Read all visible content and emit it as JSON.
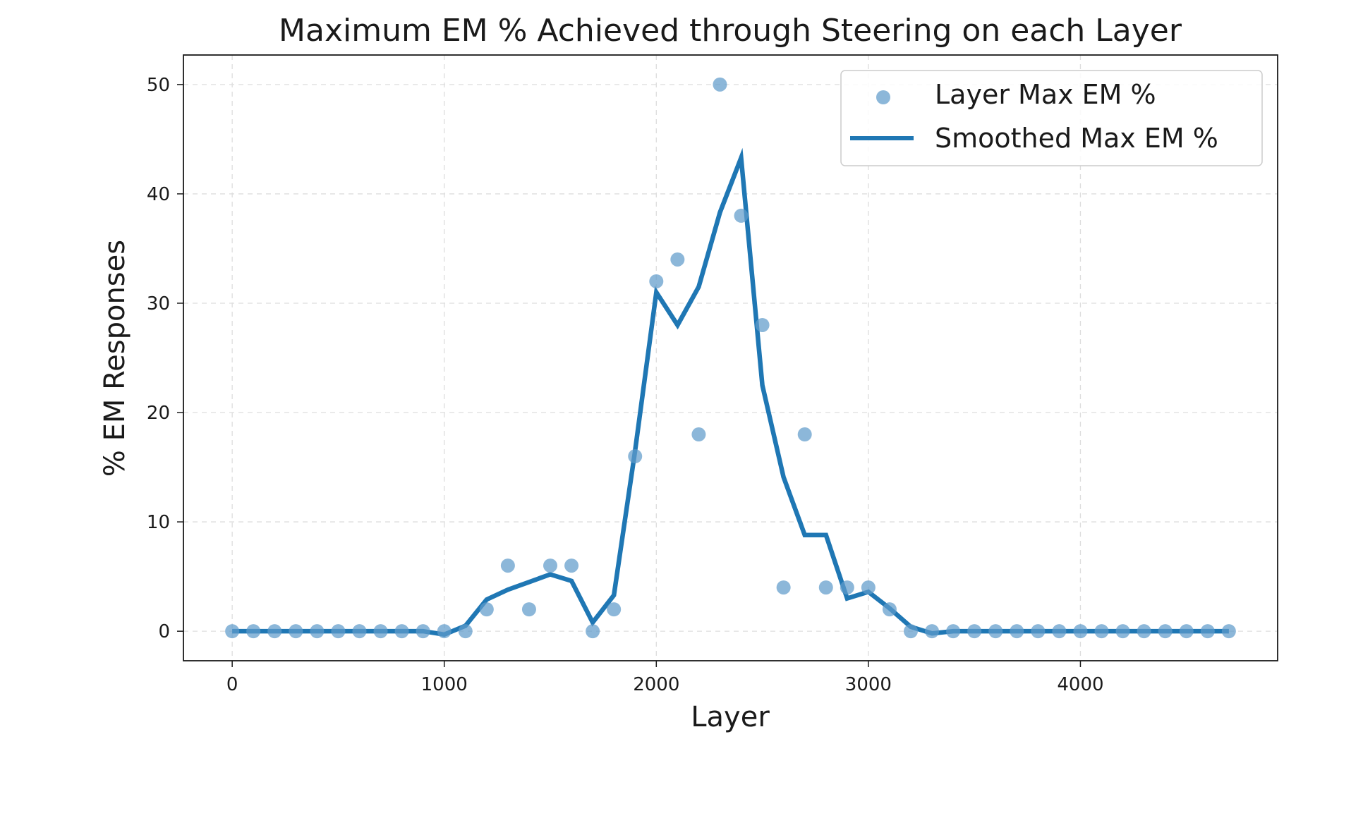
{
  "chart_data": {
    "type": "scatter",
    "title": "Maximum EM % Achieved through Steering on each Layer",
    "xlabel": "Layer",
    "ylabel": "% EM Responses",
    "xlim": [
      -230,
      4930
    ],
    "ylim": [
      -2.7,
      52.7
    ],
    "x_ticks": [
      0,
      1000,
      2000,
      3000,
      4000
    ],
    "y_ticks": [
      0,
      10,
      20,
      30,
      40,
      50
    ],
    "grid": true,
    "legend_position": "top-right",
    "colors": {
      "points": "#5f9bcb",
      "line": "#1f77b4"
    },
    "x": [
      0,
      100,
      200,
      300,
      400,
      500,
      600,
      700,
      800,
      900,
      1000,
      1100,
      1200,
      1300,
      1400,
      1500,
      1600,
      1700,
      1800,
      1900,
      2000,
      2100,
      2200,
      2300,
      2400,
      2500,
      2600,
      2700,
      2800,
      2900,
      3000,
      3100,
      3200,
      3300,
      3400,
      3500,
      3600,
      3700,
      3800,
      3900,
      4000,
      4100,
      4200,
      4300,
      4400,
      4500,
      4600,
      4700
    ],
    "series": [
      {
        "name": "Layer Max EM %",
        "kind": "scatter",
        "values": [
          0,
          0,
          0,
          0,
          0,
          0,
          0,
          0,
          0,
          0,
          0,
          0,
          2,
          6,
          2,
          6,
          6,
          0,
          2,
          16,
          32,
          34,
          18,
          50,
          38,
          28,
          4,
          18,
          4,
          4,
          4,
          2,
          0,
          0,
          0,
          0,
          0,
          0,
          0,
          0,
          0,
          0,
          0,
          0,
          0,
          0,
          0,
          0
        ]
      },
      {
        "name": "Smoothed Max EM %",
        "kind": "line",
        "values": [
          0,
          0,
          0,
          0,
          0,
          0,
          0,
          0,
          0,
          0,
          -0.3,
          0.5,
          2.9,
          3.8,
          4.5,
          5.2,
          4.6,
          0.8,
          3.3,
          16.5,
          31.0,
          28.0,
          31.5,
          38.3,
          43.3,
          22.5,
          14.1,
          8.8,
          8.8,
          3.0,
          3.6,
          2.1,
          0.4,
          -0.2,
          0,
          0,
          0,
          0,
          0,
          0,
          0,
          0,
          0,
          0,
          0,
          0,
          0,
          0
        ]
      }
    ]
  }
}
